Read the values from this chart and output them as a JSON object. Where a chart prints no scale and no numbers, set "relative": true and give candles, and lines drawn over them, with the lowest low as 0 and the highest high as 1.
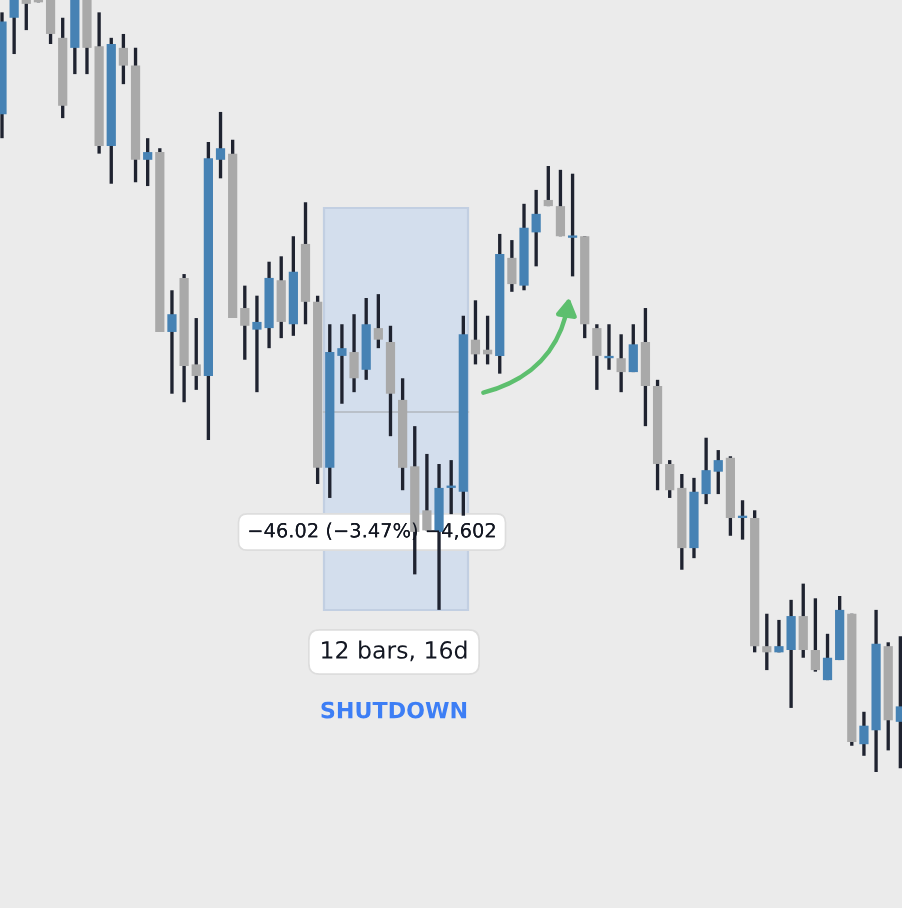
{
  "chart_data": {
    "type": "candlestick",
    "relative": true,
    "categories": [
      null,
      null,
      null,
      null,
      null,
      null,
      null,
      null,
      null,
      null,
      null,
      null,
      null,
      null,
      null,
      null,
      null,
      null,
      null,
      null,
      null,
      null,
      null,
      null,
      null,
      null,
      null,
      null,
      null,
      null,
      null,
      null,
      null,
      null,
      null,
      null,
      null,
      null,
      null,
      null,
      null,
      null,
      null,
      null,
      null,
      null,
      null,
      null,
      null,
      null,
      null,
      null,
      null,
      null,
      null,
      null,
      null,
      null,
      null,
      null,
      null,
      null,
      null,
      null,
      null,
      null,
      null,
      null,
      null,
      null,
      null,
      null,
      null,
      null,
      null
    ],
    "ohlc": [
      [
        0.852,
        0.984,
        0.821,
        0.972
      ],
      [
        0.977,
        1,
        0.93,
        1
      ],
      [
        1,
        1,
        0.961,
        0.995
      ],
      [
        1,
        1,
        0.997,
        0.997
      ],
      [
        1,
        1,
        0.943,
        0.956
      ],
      [
        0.951,
        0.977,
        0.847,
        0.863
      ],
      [
        0.938,
        1,
        0.904,
        1
      ],
      [
        1,
        1,
        0.904,
        0.938
      ],
      [
        0.94,
        0.984,
        0.801,
        0.811
      ],
      [
        0.811,
        0.951,
        0.762,
        0.943
      ],
      [
        0.938,
        0.956,
        0.891,
        0.915
      ],
      [
        0.915,
        0.938,
        0.764,
        0.793
      ],
      [
        0.793,
        0.821,
        0.759,
        0.803
      ],
      [
        0.803,
        0.808,
        0.57,
        0.57
      ],
      [
        0.57,
        0.624,
        0.49,
        0.593
      ],
      [
        0.64,
        0.645,
        0.479,
        0.526
      ],
      [
        0.528,
        0.588,
        0.495,
        0.513
      ],
      [
        0.513,
        0.816,
        0.43,
        0.795
      ],
      [
        0.793,
        0.855,
        0.769,
        0.808
      ],
      [
        0.801,
        0.819,
        0.588,
        0.588
      ],
      [
        0.601,
        0.63,
        0.534,
        0.578
      ],
      [
        0.573,
        0.617,
        0.492,
        0.583
      ],
      [
        0.575,
        0.661,
        0.549,
        0.64
      ],
      [
        0.637,
        0.668,
        0.562,
        0.583
      ],
      [
        0.58,
        0.694,
        0.565,
        0.648
      ],
      [
        0.684,
        0.738,
        0.58,
        0.609
      ],
      [
        0.609,
        0.617,
        0.373,
        0.394
      ],
      [
        0.394,
        0.58,
        0.355,
        0.544
      ],
      [
        0.539,
        0.58,
        0.477,
        0.549
      ],
      [
        0.544,
        0.593,
        0.492,
        0.51
      ],
      [
        0.521,
        0.614,
        0.508,
        0.58
      ],
      [
        0.575,
        0.619,
        0.549,
        0.56
      ],
      [
        0.557,
        0.578,
        0.435,
        0.49
      ],
      [
        0.482,
        0.51,
        0.365,
        0.394
      ],
      [
        0.396,
        0.448,
        0.256,
        0.311
      ],
      [
        0.339,
        0.412,
        0.313,
        0.313
      ],
      [
        0.311,
        0.399,
        0.21,
        0.368
      ],
      [
        0.368,
        0.404,
        0.334,
        0.37
      ],
      [
        0.363,
        0.591,
        0.332,
        0.567
      ],
      [
        0.56,
        0.611,
        0.528,
        0.541
      ],
      [
        0.547,
        0.591,
        0.528,
        0.541
      ],
      [
        0.539,
        0.697,
        0.516,
        0.671
      ],
      [
        0.666,
        0.689,
        0.622,
        0.632
      ],
      [
        0.63,
        0.736,
        0.624,
        0.705
      ],
      [
        0.699,
        0.754,
        0.655,
        0.723
      ],
      [
        0.741,
        0.785,
        0.733,
        0.733
      ],
      [
        0.733,
        0.78,
        0.694,
        0.694
      ],
      [
        0.692,
        0.775,
        0.642,
        0.694
      ],
      [
        0.694,
        0.694,
        0.562,
        0.58
      ],
      [
        0.575,
        0.58,
        0.495,
        0.539
      ],
      [
        0.536,
        0.58,
        0.521,
        0.539
      ],
      [
        0.536,
        0.567,
        0.492,
        0.518
      ],
      [
        0.518,
        0.58,
        0.518,
        0.554
      ],
      [
        0.557,
        0.601,
        0.448,
        0.5
      ],
      [
        0.5,
        0.508,
        0.365,
        0.399
      ],
      [
        0.399,
        0.404,
        0.355,
        0.365
      ],
      [
        0.368,
        0.386,
        0.262,
        0.29
      ],
      [
        0.29,
        0.381,
        0.277,
        0.363
      ],
      [
        0.36,
        0.433,
        0.347,
        0.391
      ],
      [
        0.389,
        0.417,
        0.36,
        0.404
      ],
      [
        0.407,
        0.409,
        0.306,
        0.329
      ],
      [
        0.329,
        0.352,
        0.301,
        0.332
      ],
      [
        0.329,
        0.339,
        0.155,
        0.163
      ],
      [
        0.163,
        0.205,
        0.132,
        0.155
      ],
      [
        0.155,
        0.197,
        0.155,
        0.163
      ],
      [
        0.158,
        0.223,
        0.083,
        0.202
      ],
      [
        0.202,
        0.244,
        0.148,
        0.158
      ],
      [
        0.158,
        0.225,
        0.13,
        0.132
      ],
      [
        0.119,
        0.179,
        0.119,
        0.148
      ],
      [
        0.145,
        0.228,
        0.145,
        0.21
      ],
      [
        0.205,
        0.205,
        0.034,
        0.039
      ],
      [
        0.036,
        0.078,
        0.021,
        0.06
      ],
      [
        0.054,
        0.21,
        0,
        0.166
      ],
      [
        0.163,
        0.168,
        0.028,
        0.067
      ],
      [
        0.065,
        0.176,
        0.005,
        0.085
      ]
    ],
    "colors": [
      "#4682b4",
      "#4682b4",
      "#a9a9a9",
      "#a9a9a9",
      "#a9a9a9",
      "#a9a9a9",
      "#4682b4",
      "#a9a9a9",
      "#a9a9a9",
      "#4682b4",
      "#a9a9a9",
      "#a9a9a9",
      "#4682b4",
      "#a9a9a9",
      "#4682b4",
      "#a9a9a9",
      "#a9a9a9",
      "#4682b4",
      "#4682b4",
      "#a9a9a9",
      "#a9a9a9",
      "#4682b4",
      "#4682b4",
      "#a9a9a9",
      "#4682b4",
      "#a9a9a9",
      "#a9a9a9",
      "#4682b4",
      "#4682b4",
      "#a9a9a9",
      "#4682b4",
      "#a9a9a9",
      "#a9a9a9",
      "#a9a9a9",
      "#a9a9a9",
      "#a9a9a9",
      "#4682b4",
      "#4682b4",
      "#4682b4",
      "#a9a9a9",
      "#a9a9a9",
      "#4682b4",
      "#a9a9a9",
      "#4682b4",
      "#4682b4",
      "#a9a9a9",
      "#a9a9a9",
      "#4682b4",
      "#a9a9a9",
      "#a9a9a9",
      "#4682b4",
      "#a9a9a9",
      "#4682b4",
      "#a9a9a9",
      "#a9a9a9",
      "#a9a9a9",
      "#a9a9a9",
      "#4682b4",
      "#4682b4",
      "#4682b4",
      "#a9a9a9",
      "#4682b4",
      "#a9a9a9",
      "#a9a9a9",
      "#4682b4",
      "#4682b4",
      "#a9a9a9",
      "#a9a9a9",
      "#4682b4",
      "#4682b4",
      "#a9a9a9",
      "#4682b4",
      "#4682b4",
      "#a9a9a9",
      "#4682b4"
    ],
    "annotations": [
      "−46.02 (−3.47%) −4,602",
      "12 bars, 16d",
      "SHUTDOWN"
    ]
  }
}
